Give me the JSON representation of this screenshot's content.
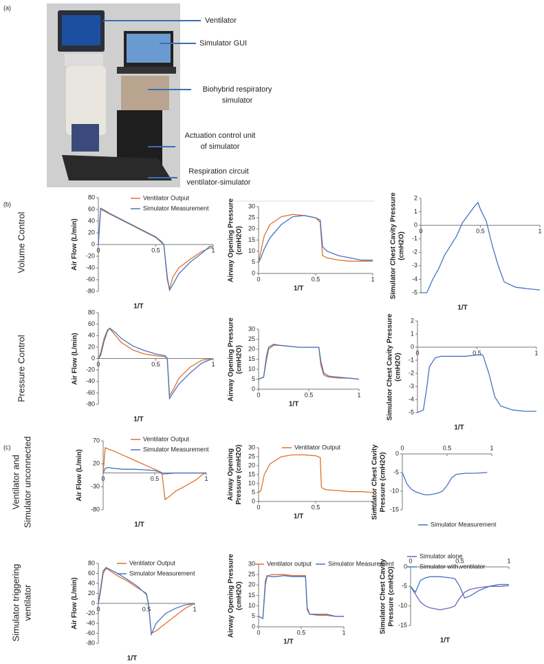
{
  "panel_labels": [
    "(a)",
    "(b)",
    "(c)"
  ],
  "photo_labels": [
    [
      "Ventilator"
    ],
    [
      "Simulator GUI"
    ],
    [
      "Biohybrid respiratory",
      "simulator"
    ],
    [
      "Actuation control unit",
      "of simulator"
    ],
    [
      "Respiration circuit",
      "ventilator-simulator"
    ]
  ],
  "row_labels": [
    [
      "Volume Control"
    ],
    [
      "Pressure Control"
    ],
    [
      "Ventilator and",
      "Simulator unconnected"
    ],
    [
      "Simulator triggering",
      "ventilator"
    ]
  ],
  "chart_data": [
    {
      "type": "line",
      "y_label": "Air Flow (L/min)",
      "x_label": "1/T",
      "xlim": [
        0,
        1
      ],
      "xticks": [
        0,
        0.5,
        1
      ],
      "ylim": [
        -80,
        80
      ],
      "yticks": [
        80,
        60,
        40,
        20,
        0,
        -20,
        -40,
        -60,
        -80
      ],
      "x": [
        0,
        0.02,
        0.04,
        0.1,
        0.2,
        0.3,
        0.4,
        0.5,
        0.55,
        0.57,
        0.6,
        0.62,
        0.65,
        0.7,
        0.8,
        0.9,
        0.97,
        1
      ],
      "series": [
        {
          "name": "Ventilator Output",
          "color": "#e0702a",
          "values": [
            0,
            60,
            58,
            52,
            42,
            32,
            22,
            12,
            3,
            0,
            -60,
            -75,
            -55,
            -40,
            -25,
            -12,
            -6,
            -5
          ]
        },
        {
          "name": "Simulator Measurement",
          "color": "#4472c4",
          "values": [
            0,
            62,
            60,
            53,
            43,
            33,
            23,
            13,
            5,
            0,
            -55,
            -78,
            -68,
            -50,
            -30,
            -15,
            -3,
            -3
          ]
        }
      ]
    },
    {
      "type": "line",
      "y_label": "Airway Opening Pressure (cmH2O)",
      "x_label": "1/T",
      "xlim": [
        0,
        1
      ],
      "xticks": [
        0,
        0.5,
        1
      ],
      "ylim": [
        0,
        30
      ],
      "yticks": [
        0,
        5,
        10,
        15,
        20,
        25,
        30
      ],
      "x": [
        0,
        0.02,
        0.05,
        0.1,
        0.2,
        0.3,
        0.4,
        0.5,
        0.54,
        0.56,
        0.6,
        0.7,
        0.8,
        0.9,
        1
      ],
      "series": [
        {
          "color": "#e0702a",
          "values": [
            5,
            10,
            17,
            22,
            25.5,
            26.5,
            26,
            25,
            23,
            8,
            7,
            6,
            5.5,
            5.5,
            5.5
          ]
        },
        {
          "color": "#4472c4",
          "values": [
            5,
            7,
            11,
            16,
            22,
            25.5,
            26,
            25,
            24,
            12,
            10,
            8,
            7,
            6,
            6
          ]
        }
      ]
    },
    {
      "type": "line",
      "y_label": "Simulator Chest Cavity Pressure (cmH2O)",
      "x_label": "1/T",
      "xlim": [
        0,
        1
      ],
      "xticks": [
        0,
        0.5,
        1
      ],
      "ylim": [
        -5,
        2
      ],
      "yticks": [
        2,
        1,
        0,
        -1,
        -2,
        -3,
        -4,
        -5
      ],
      "x": [
        0,
        0.05,
        0.1,
        0.15,
        0.2,
        0.3,
        0.35,
        0.4,
        0.45,
        0.48,
        0.5,
        0.55,
        0.6,
        0.65,
        0.7,
        0.8,
        0.9,
        1
      ],
      "series": [
        {
          "color": "#4472c4",
          "values": [
            -5,
            -5,
            -4,
            -3.2,
            -2.2,
            -0.8,
            0.2,
            0.8,
            1.4,
            1.7,
            1.2,
            0.3,
            -1.5,
            -3,
            -4.2,
            -4.6,
            -4.7,
            -4.8
          ]
        }
      ]
    },
    {
      "type": "line",
      "y_label": "Air Flow (L/min)",
      "x_label": "1/T",
      "xlim": [
        0,
        1
      ],
      "xticks": [
        0,
        0.5,
        1
      ],
      "ylim": [
        -80,
        80
      ],
      "yticks": [
        80,
        60,
        40,
        20,
        0,
        -20,
        -40,
        -60,
        -80
      ],
      "x": [
        0,
        0.02,
        0.05,
        0.08,
        0.1,
        0.15,
        0.2,
        0.3,
        0.4,
        0.5,
        0.58,
        0.6,
        0.62,
        0.65,
        0.7,
        0.8,
        0.9,
        1
      ],
      "series": [
        {
          "color": "#e0702a",
          "values": [
            0,
            10,
            35,
            50,
            52,
            40,
            28,
            15,
            8,
            5,
            3,
            0,
            -65,
            -55,
            -35,
            -15,
            -3,
            0
          ]
        },
        {
          "color": "#4472c4",
          "values": [
            0,
            5,
            30,
            48,
            53,
            45,
            35,
            22,
            14,
            8,
            5,
            0,
            -70,
            -60,
            -45,
            -25,
            -8,
            0
          ]
        }
      ]
    },
    {
      "type": "line",
      "y_label": "Airway Opening Pressure (cmH2O)",
      "x_label": "1/T",
      "xlim": [
        0,
        1
      ],
      "xticks": [
        0,
        0.5,
        1
      ],
      "ylim": [
        0,
        30
      ],
      "yticks": [
        0,
        5,
        10,
        15,
        20,
        25,
        30
      ],
      "x": [
        0,
        0.05,
        0.08,
        0.1,
        0.15,
        0.2,
        0.3,
        0.4,
        0.5,
        0.6,
        0.62,
        0.65,
        0.7,
        0.8,
        0.9,
        1
      ],
      "series": [
        {
          "color": "#e0702a",
          "values": [
            5,
            6,
            15,
            20,
            22,
            22,
            21.5,
            21,
            21,
            21,
            12,
            7,
            6,
            5.5,
            5.5,
            5
          ]
        },
        {
          "color": "#4472c4",
          "values": [
            5,
            6,
            17,
            21,
            22.5,
            22,
            21.5,
            21,
            21,
            21,
            14,
            8,
            6.5,
            6,
            5.5,
            5
          ]
        }
      ]
    },
    {
      "type": "line",
      "y_label": "Simulator Chest Cavity Pressure (cmH2O)",
      "x_label": "1/T",
      "xlim": [
        0,
        1
      ],
      "xticks": [
        0,
        0.5,
        1
      ],
      "ylim": [
        -5,
        2
      ],
      "yticks": [
        2,
        1,
        0,
        -1,
        -2,
        -3,
        -4,
        -5
      ],
      "x": [
        0,
        0.05,
        0.08,
        0.1,
        0.15,
        0.2,
        0.3,
        0.4,
        0.5,
        0.55,
        0.6,
        0.65,
        0.7,
        0.8,
        0.9,
        1
      ],
      "series": [
        {
          "color": "#4472c4",
          "values": [
            -5,
            -4.8,
            -3,
            -1.5,
            -0.8,
            -0.7,
            -0.7,
            -0.7,
            -0.6,
            -0.6,
            -2,
            -3.8,
            -4.5,
            -4.8,
            -4.9,
            -4.9
          ]
        }
      ]
    },
    {
      "type": "line",
      "y_label": "Air Flow (L/min)",
      "x_label": "1/T",
      "xlim": [
        0,
        1
      ],
      "xticks": [
        0,
        0.5,
        1
      ],
      "ylim": [
        -80,
        70
      ],
      "yticks": [
        70,
        20,
        -30,
        -80
      ],
      "x": [
        0,
        0.02,
        0.05,
        0.1,
        0.2,
        0.3,
        0.4,
        0.5,
        0.55,
        0.57,
        0.6,
        0.65,
        0.7,
        0.8,
        0.9,
        0.97,
        1
      ],
      "series": [
        {
          "name": "Ventilator Output",
          "color": "#e0702a",
          "values": [
            0,
            55,
            52,
            48,
            38,
            28,
            18,
            8,
            3,
            0,
            -58,
            -50,
            -40,
            -28,
            -15,
            -2,
            0
          ]
        },
        {
          "name": "Simulator Measurement",
          "color": "#4472c4",
          "values": [
            0,
            10,
            12,
            10,
            8,
            8,
            7,
            5,
            2,
            -2,
            -2,
            -1,
            0,
            0,
            0,
            0,
            0
          ]
        }
      ]
    },
    {
      "type": "line",
      "y_label": "Airway Opening Pressure (cmH2O)",
      "x_label": "1/T",
      "xlim": [
        0,
        1
      ],
      "xticks": [
        0,
        0.5,
        1
      ],
      "ylim": [
        0,
        30
      ],
      "yticks": [
        0,
        5,
        10,
        15,
        20,
        25,
        30
      ],
      "x": [
        0,
        0.02,
        0.05,
        0.1,
        0.2,
        0.3,
        0.4,
        0.5,
        0.54,
        0.55,
        0.57,
        0.6,
        0.7,
        0.8,
        0.9,
        1
      ],
      "series": [
        {
          "name": "Ventilator Output",
          "color": "#e0702a",
          "values": [
            5,
            6,
            15,
            21,
            25,
            26,
            26,
            25.5,
            24.5,
            8,
            7,
            6.5,
            6,
            5.5,
            5.5,
            5
          ]
        }
      ]
    },
    {
      "type": "line",
      "y_label": "Simulator Chest Cavity Pressure (cmH2O)",
      "xlim": [
        0,
        1
      ],
      "xticks": [
        0,
        0.5,
        1
      ],
      "ylim": [
        -15,
        0
      ],
      "yticks": [
        0,
        -5,
        -10,
        -15
      ],
      "x": [
        0,
        0.05,
        0.1,
        0.15,
        0.2,
        0.25,
        0.3,
        0.35,
        0.4,
        0.45,
        0.5,
        0.55,
        0.6,
        0.7,
        0.8,
        0.95
      ],
      "series": [
        {
          "name": "Simulator Measurement",
          "color": "#4472c4",
          "values": [
            -5,
            -8,
            -9.5,
            -10.2,
            -10.6,
            -11,
            -11,
            -10.8,
            -10.5,
            -10,
            -8.5,
            -6.5,
            -5.5,
            -5.2,
            -5.2,
            -5
          ]
        }
      ]
    },
    {
      "type": "line",
      "y_label": "Air Flow (L/min)",
      "x_label": "1/T",
      "xlim": [
        0,
        1
      ],
      "xticks": [
        0,
        0.5,
        1
      ],
      "ylim": [
        -80,
        80
      ],
      "yticks": [
        80,
        60,
        40,
        20,
        0,
        -20,
        -40,
        -60,
        -80
      ],
      "x": [
        0,
        0.02,
        0.05,
        0.08,
        0.1,
        0.2,
        0.3,
        0.4,
        0.5,
        0.52,
        0.55,
        0.6,
        0.7,
        0.8,
        0.9,
        1
      ],
      "series": [
        {
          "name": "Ventilator Output",
          "color": "#e0702a",
          "values": [
            0,
            20,
            60,
            70,
            68,
            55,
            45,
            32,
            20,
            0,
            -60,
            -55,
            -40,
            -25,
            -10,
            0
          ]
        },
        {
          "name": "Simulator Measurement",
          "color": "#4472c4",
          "values": [
            0,
            25,
            65,
            72,
            70,
            60,
            48,
            35,
            18,
            0,
            -62,
            -40,
            -20,
            -10,
            -3,
            0
          ]
        }
      ]
    },
    {
      "type": "line",
      "y_label": "Airway Opening Pressure (cmH2O)",
      "x_label": "1/T",
      "xlim": [
        0,
        1
      ],
      "xticks": [
        0,
        0.5,
        1
      ],
      "ylim": [
        0,
        30
      ],
      "yticks": [
        0,
        5,
        10,
        15,
        20,
        25,
        30
      ],
      "x": [
        0,
        0.05,
        0.08,
        0.1,
        0.15,
        0.2,
        0.3,
        0.4,
        0.5,
        0.55,
        0.57,
        0.6,
        0.7,
        0.8,
        0.9,
        1
      ],
      "series": [
        {
          "name": "Ventilator output",
          "color": "#e0702a",
          "values": [
            5,
            4,
            20,
            24,
            25,
            25,
            25,
            24.5,
            24.5,
            24.5,
            8,
            6,
            5.5,
            5.5,
            5,
            5
          ]
        },
        {
          "name": "Simulator Measurement",
          "color": "#4472c4",
          "values": [
            5,
            4,
            22,
            24.5,
            24,
            24,
            24.5,
            24,
            24,
            24,
            9,
            6,
            6,
            6,
            5,
            5
          ]
        }
      ]
    },
    {
      "type": "line",
      "y_label": "Simulator Chest Cavity Pressure (cmH2O)",
      "x_label": "1/T",
      "xlim": [
        0,
        1
      ],
      "xticks": [
        0,
        0.5,
        1
      ],
      "ylim": [
        -15,
        0
      ],
      "yticks": [
        0,
        -5,
        -10,
        -15
      ],
      "x": [
        0,
        0.05,
        0.1,
        0.15,
        0.2,
        0.3,
        0.4,
        0.45,
        0.5,
        0.55,
        0.6,
        0.7,
        0.8,
        0.9,
        1
      ],
      "series": [
        {
          "name": "Simulator alone",
          "color": "#7b5fb8",
          "values": [
            -5,
            -7,
            -9,
            -10,
            -10.5,
            -11,
            -10.5,
            -10,
            -8,
            -6.5,
            -5.8,
            -5.3,
            -5,
            -5,
            -4.8
          ]
        },
        {
          "name": "Simulator with ventilator",
          "color": "#4472c4",
          "values": [
            -5,
            -6.5,
            -3.5,
            -2.8,
            -2.5,
            -2.5,
            -2.8,
            -3,
            -5,
            -8,
            -7.5,
            -6,
            -5,
            -4.5,
            -4.5
          ]
        }
      ]
    }
  ]
}
